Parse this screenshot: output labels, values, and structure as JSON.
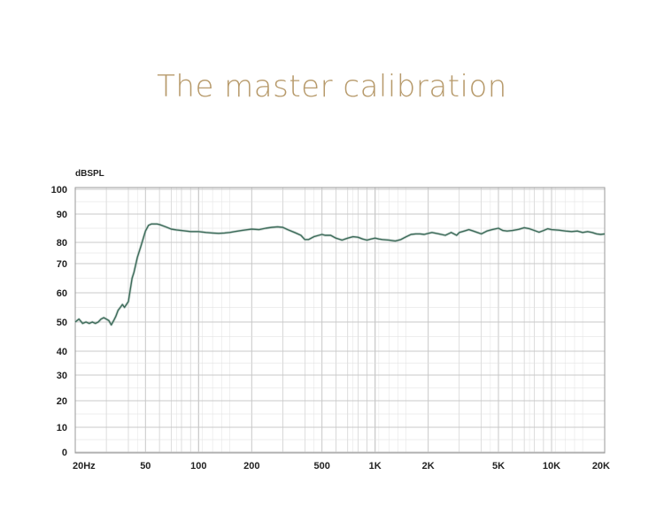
{
  "header": {
    "title": "The master calibration"
  },
  "colors": {
    "title": "#b79a6b",
    "grid": "#c8c8c8",
    "frame": "#9a9a9a",
    "line": "#3d6b5a"
  },
  "chart_data": {
    "type": "line",
    "title": "The master calibration",
    "ylabel": "dBSPL",
    "xlabel": "",
    "x_scale": "log",
    "xlim": [
      20,
      20000
    ],
    "y_ticks": [
      100,
      90,
      80,
      70,
      60,
      50,
      40,
      30,
      20,
      10,
      0
    ],
    "x_ticks": [
      {
        "value": 20,
        "label": "20Hz"
      },
      {
        "value": 50,
        "label": "50"
      },
      {
        "value": 100,
        "label": "100"
      },
      {
        "value": 200,
        "label": "200"
      },
      {
        "value": 500,
        "label": "500"
      },
      {
        "value": 1000,
        "label": "1K"
      },
      {
        "value": 2000,
        "label": "2K"
      },
      {
        "value": 5000,
        "label": "5K"
      },
      {
        "value": 10000,
        "label": "10K"
      },
      {
        "value": 20000,
        "label": "20K"
      }
    ],
    "grid": true,
    "series": [
      {
        "x": [
          20,
          21,
          22,
          23,
          24,
          25,
          26,
          27,
          28,
          29,
          30,
          31,
          32,
          33,
          34,
          35,
          36,
          37,
          38,
          40,
          41,
          42,
          43,
          45,
          47,
          50,
          52,
          54,
          56,
          58,
          60,
          65,
          70,
          75,
          80,
          90,
          100,
          110,
          120,
          130,
          140,
          150,
          160,
          175,
          190,
          200,
          220,
          240,
          260,
          280,
          300,
          320,
          350,
          380,
          400,
          420,
          450,
          480,
          500,
          520,
          560,
          600,
          650,
          700,
          750,
          800,
          850,
          900,
          950,
          1000,
          1050,
          1100,
          1200,
          1300,
          1400,
          1500,
          1600,
          1700,
          1800,
          1900,
          2000,
          2100,
          2300,
          2500,
          2700,
          2900,
          3000,
          3200,
          3400,
          3600,
          3800,
          4000,
          4300,
          4600,
          5000,
          5300,
          5600,
          6000,
          6500,
          7000,
          7500,
          8000,
          8500,
          9000,
          9500,
          10000,
          11000,
          12000,
          13000,
          14000,
          15000,
          16000,
          17000,
          18000,
          19000,
          20000
        ],
        "y": [
          50,
          51,
          49.5,
          50,
          49.5,
          50,
          49.5,
          50,
          51,
          51.5,
          51,
          50.5,
          49,
          50.5,
          52,
          54,
          55,
          56,
          55,
          57,
          61,
          65,
          67,
          73,
          78,
          84,
          86,
          86.5,
          86.5,
          86.5,
          86.3,
          85.5,
          84.7,
          84.4,
          84.2,
          83.8,
          83.8,
          83.5,
          83.3,
          83.2,
          83.3,
          83.5,
          83.8,
          84.2,
          84.5,
          84.7,
          84.5,
          85,
          85.3,
          85.5,
          85.3,
          84.5,
          83.5,
          82.5,
          81,
          81,
          82,
          82.5,
          82.8,
          82.5,
          82.5,
          81.5,
          80.8,
          81.5,
          82,
          81.8,
          81.2,
          80.8,
          81.2,
          81.5,
          81.2,
          81,
          80.8,
          80.5,
          81,
          82,
          82.8,
          83,
          83,
          82.8,
          83.2,
          83.5,
          83,
          82.5,
          83.5,
          82.5,
          83.5,
          84,
          84.5,
          84,
          83.5,
          83,
          84,
          84.5,
          85,
          84.2,
          84,
          84.2,
          84.6,
          85.2,
          84.8,
          84.2,
          83.6,
          84.2,
          84.8,
          84.5,
          84.3,
          84,
          83.8,
          84,
          83.5,
          83.8,
          83.5,
          83,
          82.8,
          83
        ]
      }
    ]
  }
}
